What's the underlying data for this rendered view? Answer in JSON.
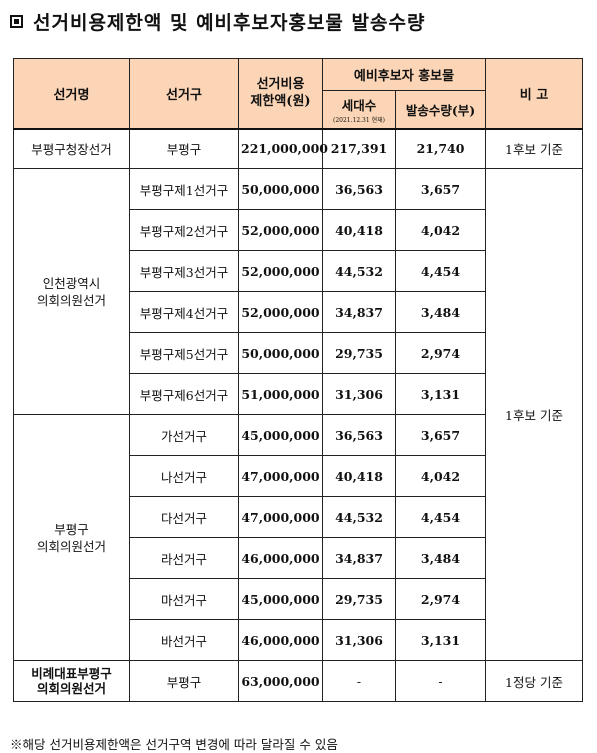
{
  "title": "선거비용제한액 및 예비후보자홍보물 발송수량",
  "headers": {
    "election": "선거명",
    "district": "선거구",
    "limit_line1": "선거비용",
    "limit_line2": "제한액(원)",
    "promo_group": "예비후보자 홍보물",
    "households": "세대수",
    "households_note": "(2021.12.31 현재)",
    "send_qty": "발송수량(부)",
    "remark": "비    고"
  },
  "groups": [
    {
      "election": "부평구청장선거",
      "rows": [
        {
          "district": "부평구",
          "limit": "221,000,000",
          "households": "217,391",
          "qty": "21,740"
        }
      ],
      "remark": "1후보 기준"
    },
    {
      "election_line1": "인천광역시",
      "election_line2": "의회의원선거",
      "rows": [
        {
          "district": "부평구제1선거구",
          "limit": "50,000,000",
          "households": "36,563",
          "qty": "3,657"
        },
        {
          "district": "부평구제2선거구",
          "limit": "52,000,000",
          "households": "40,418",
          "qty": "4,042"
        },
        {
          "district": "부평구제3선거구",
          "limit": "52,000,000",
          "households": "44,532",
          "qty": "4,454"
        },
        {
          "district": "부평구제4선거구",
          "limit": "52,000,000",
          "households": "34,837",
          "qty": "3,484"
        },
        {
          "district": "부평구제5선거구",
          "limit": "50,000,000",
          "households": "29,735",
          "qty": "2,974"
        },
        {
          "district": "부평구제6선거구",
          "limit": "51,000,000",
          "households": "31,306",
          "qty": "3,131"
        }
      ]
    },
    {
      "election_line1": "부평구",
      "election_line2": "의회의원선거",
      "rows": [
        {
          "district": "가선거구",
          "limit": "45,000,000",
          "households": "36,563",
          "qty": "3,657"
        },
        {
          "district": "나선거구",
          "limit": "47,000,000",
          "households": "40,418",
          "qty": "4,042"
        },
        {
          "district": "다선거구",
          "limit": "47,000,000",
          "households": "44,532",
          "qty": "4,454"
        },
        {
          "district": "라선거구",
          "limit": "46,000,000",
          "households": "34,837",
          "qty": "3,484"
        },
        {
          "district": "마선거구",
          "limit": "45,000,000",
          "households": "29,735",
          "qty": "2,974"
        },
        {
          "district": "바선거구",
          "limit": "46,000,000",
          "households": "31,306",
          "qty": "3,131"
        }
      ]
    },
    {
      "election_line1": "비례대표부평구",
      "election_line2": "의회의원선거",
      "rows": [
        {
          "district": "부평구",
          "limit": "63,000,000",
          "households": "-",
          "qty": "-"
        }
      ],
      "remark": "1정당 기준"
    }
  ],
  "council_remark": "1후보 기준",
  "footnote": "※해당 선거비용제한액은 선거구역 변경에 따라 달라질 수 있음"
}
